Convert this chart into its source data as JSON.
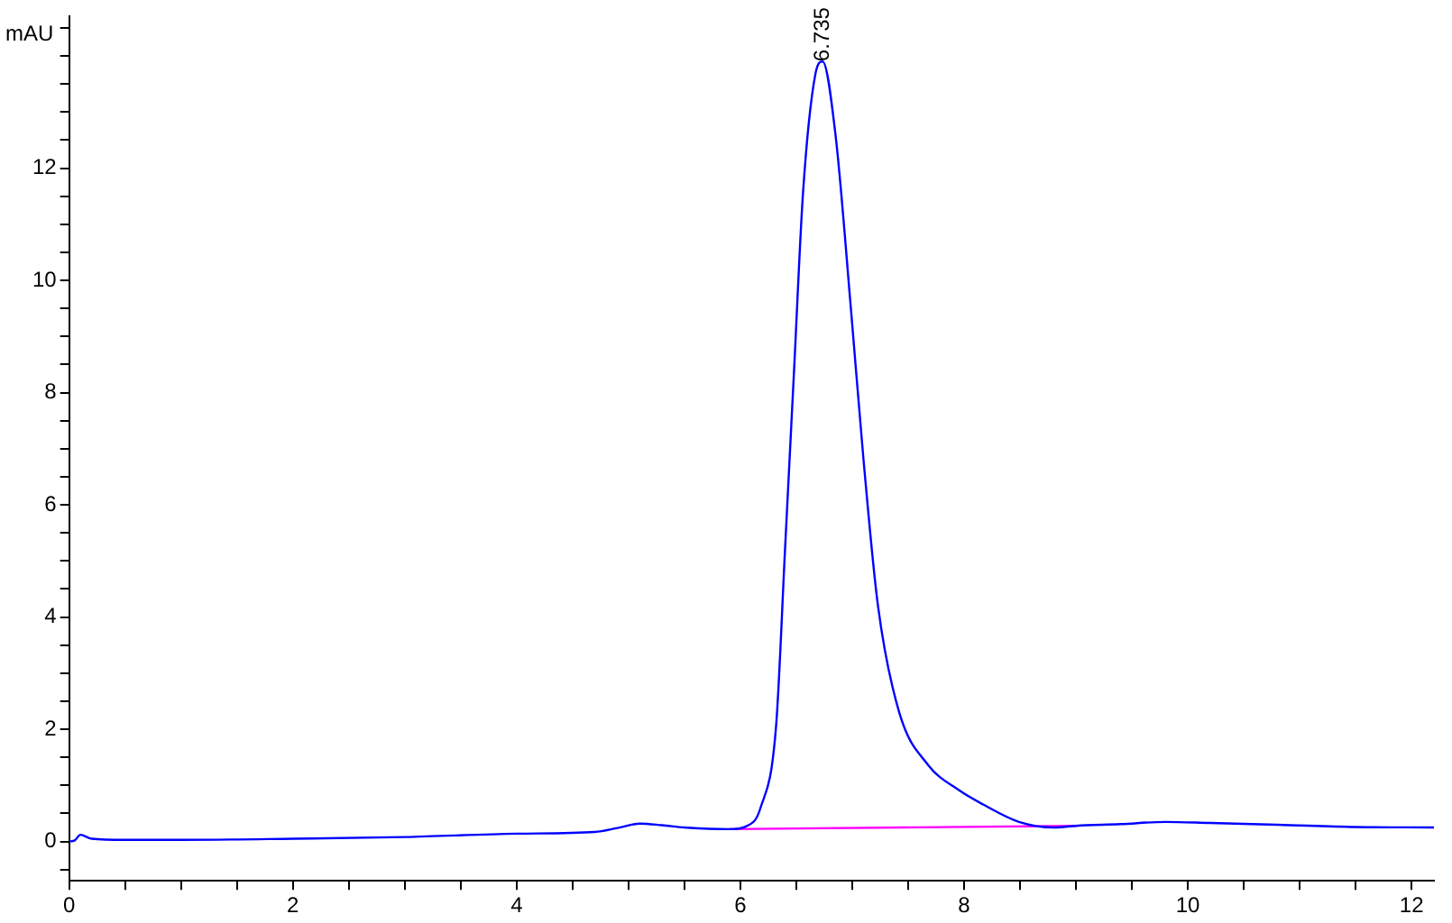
{
  "chart_data": {
    "type": "line",
    "ylabel": "mAU",
    "xlim": [
      0,
      12.2
    ],
    "ylim": [
      -0.7,
      14.7
    ],
    "xticks": [
      0,
      {
        "value": 0.5,
        "label": null
      },
      {
        "value": 1,
        "label": null
      },
      {
        "value": 1.5,
        "label": null
      },
      2,
      {
        "value": 2.5,
        "label": null
      },
      {
        "value": 3,
        "label": null
      },
      {
        "value": 3.5,
        "label": null
      },
      4,
      {
        "value": 4.5,
        "label": null
      },
      {
        "value": 5,
        "label": null
      },
      {
        "value": 5.5,
        "label": null
      },
      6,
      {
        "value": 6.5,
        "label": null
      },
      {
        "value": 7,
        "label": null
      },
      {
        "value": 7.5,
        "label": null
      },
      8,
      {
        "value": 8.5,
        "label": null
      },
      {
        "value": 9,
        "label": null
      },
      {
        "value": 9.5,
        "label": null
      },
      10,
      {
        "value": 10.5,
        "label": null
      },
      {
        "value": 11,
        "label": null
      },
      {
        "value": 11.5,
        "label": null
      },
      12
    ],
    "yticks": [
      {
        "value": -0.5,
        "label": null
      },
      0,
      {
        "value": 0.5,
        "label": null
      },
      {
        "value": 1,
        "label": null
      },
      {
        "value": 1.5,
        "label": null
      },
      2,
      {
        "value": 2.5,
        "label": null
      },
      {
        "value": 3,
        "label": null
      },
      {
        "value": 3.5,
        "label": null
      },
      4,
      {
        "value": 4.5,
        "label": null
      },
      {
        "value": 5,
        "label": null
      },
      {
        "value": 5.5,
        "label": null
      },
      6,
      {
        "value": 6.5,
        "label": null
      },
      {
        "value": 7,
        "label": null
      },
      {
        "value": 7.5,
        "label": null
      },
      8,
      {
        "value": 8.5,
        "label": null
      },
      {
        "value": 9,
        "label": null
      },
      {
        "value": 9.5,
        "label": null
      },
      10,
      {
        "value": 10.5,
        "label": null
      },
      {
        "value": 11,
        "label": null
      },
      {
        "value": 11.5,
        "label": null
      },
      12,
      {
        "value": 12.5,
        "label": null
      },
      {
        "value": 13,
        "label": null
      },
      {
        "value": 13.5,
        "label": null
      },
      {
        "value": 14,
        "label": null
      },
      {
        "value": 14.5,
        "label": null
      }
    ],
    "grid": false,
    "legend": false,
    "marker": "none",
    "line_style": "solid",
    "annotations": [
      {
        "text": "6.735",
        "x": 6.735,
        "y": 13.9
      }
    ],
    "series": [
      {
        "color": "#0000ff",
        "x": [
          0,
          0.05,
          0.1,
          0.2,
          0.5,
          1,
          2,
          3,
          4,
          4.7,
          4.9,
          5.1,
          5.3,
          5.5,
          5.9,
          6.05,
          6.18,
          6.32,
          6.4,
          6.48,
          6.56,
          6.67,
          6.735,
          6.85,
          6.99,
          7.1,
          7.23,
          7.42,
          7.68,
          7.95,
          8.17,
          8.49,
          8.81,
          9,
          9.4,
          9.8,
          10.2,
          10.8,
          11.5,
          12.2
        ],
        "values": [
          0,
          0.02,
          0.12,
          0.05,
          0.03,
          0.03,
          0.05,
          0.08,
          0.14,
          0.17,
          0.24,
          0.32,
          0.29,
          0.25,
          0.22,
          0.27,
          0.6,
          2.08,
          5.24,
          8.4,
          11.56,
          13.67,
          13.9,
          12.6,
          9.45,
          6.82,
          4.2,
          2.3,
          1.36,
          0.92,
          0.66,
          0.35,
          0.25,
          0.28,
          0.31,
          0.35,
          0.33,
          0.3,
          0.26,
          0.25
        ]
      },
      {
        "color": "#ff00ff",
        "x": [
          5.9,
          9
        ],
        "values": [
          0.22,
          0.28
        ]
      }
    ]
  }
}
